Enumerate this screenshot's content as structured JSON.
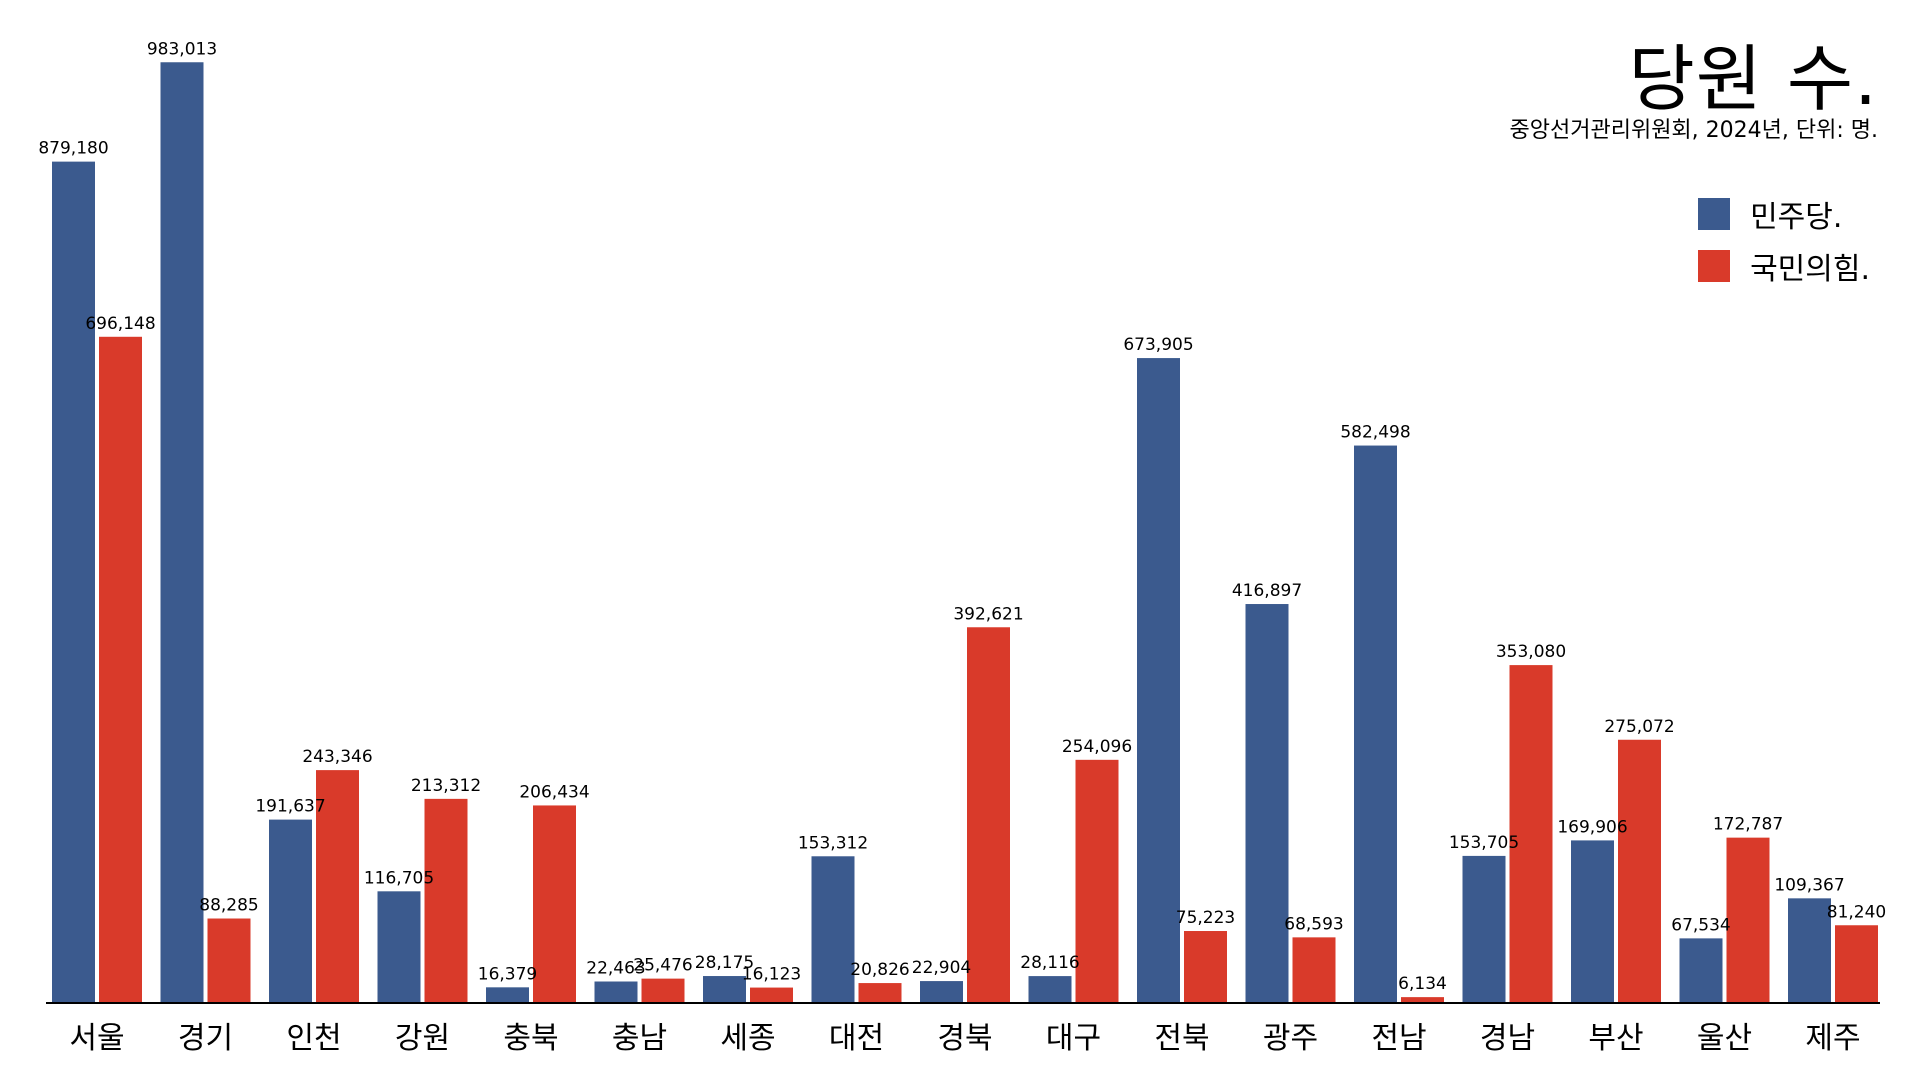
{
  "colors": {
    "minjoo": "#3b5a8e",
    "ppp": "#d93a2a",
    "axis": "#000000"
  },
  "chart_data": {
    "type": "bar",
    "title": "당원 수.",
    "subtitle": "중앙선거관리위원회, 2024년, 단위: 명.",
    "xlabel": "",
    "ylabel": "",
    "ylim": [
      0,
      1000000
    ],
    "grid": false,
    "legend_position": "top-right",
    "categories": [
      "서울",
      "경기",
      "인천",
      "강원",
      "충북",
      "충남",
      "세종",
      "대전",
      "경북",
      "대구",
      "전북",
      "광주",
      "전남",
      "경남",
      "부산",
      "울산",
      "제주"
    ],
    "series": [
      {
        "name": "민주당.",
        "color": "#3b5a8e",
        "values": [
          879180,
          983013,
          191637,
          116705,
          16379,
          22463,
          28175,
          153312,
          22904,
          28116,
          673905,
          416897,
          582498,
          153705,
          169906,
          67534,
          109367
        ],
        "labels": [
          "879,180",
          "983,013",
          "191,637",
          "116,705",
          "16,379",
          "22,463",
          "28,175",
          "153,312",
          "22,904",
          "28,116",
          "673,905",
          "416,897",
          "582,498",
          "153,705",
          "169,906",
          "67,534",
          "109,367"
        ]
      },
      {
        "name": "국민의힘.",
        "color": "#d93a2a",
        "values": [
          696148,
          88285,
          243346,
          213312,
          206434,
          25476,
          16123,
          20826,
          392621,
          254096,
          75223,
          68593,
          6134,
          353080,
          275072,
          172787,
          81240
        ],
        "labels": [
          "696,148",
          "88,285",
          "243,346",
          "213,312",
          "206,434",
          "25,476",
          "16,123",
          "20,826",
          "392,621",
          "254,096",
          "75,223",
          "68,593",
          "6,134",
          "353,080",
          "275,072",
          "172,787",
          "81,240"
        ]
      }
    ]
  }
}
